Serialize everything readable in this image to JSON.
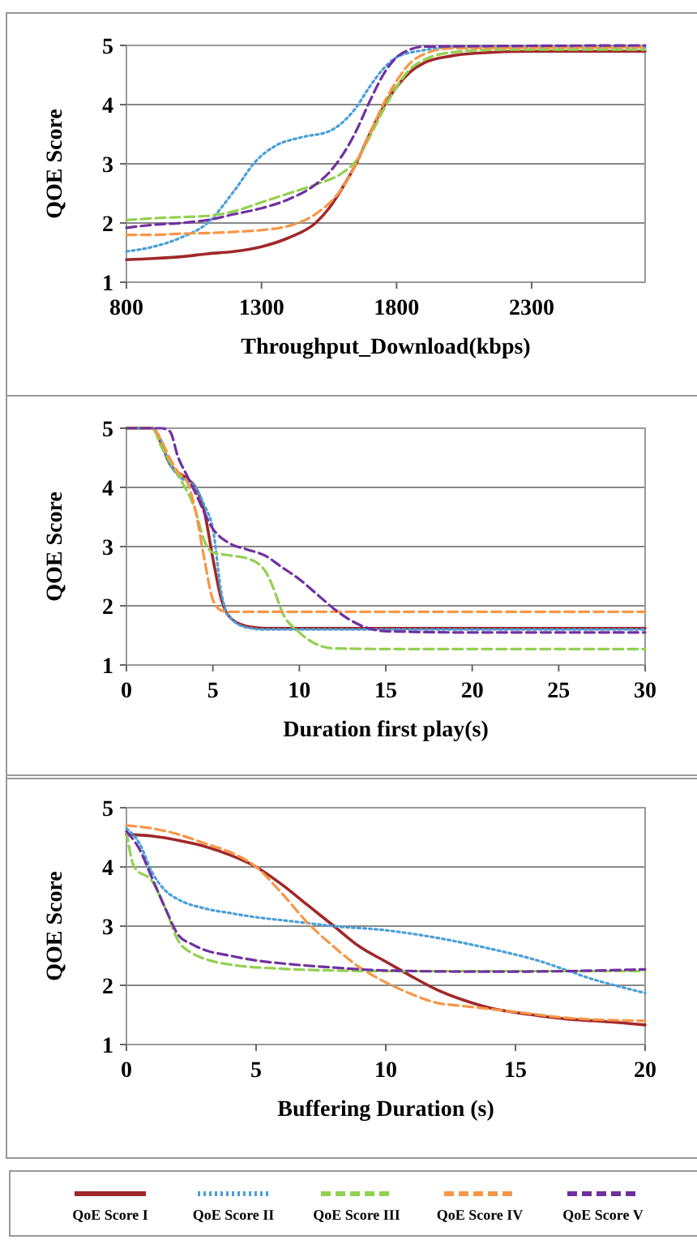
{
  "chart_data": [
    {
      "type": "line",
      "ylabel": "QOE Score",
      "xlabel": "Throughput_Download(kbps)",
      "xlim": [
        800,
        2720
      ],
      "xticks": [
        800,
        1300,
        1800,
        2300
      ],
      "ylim": [
        1,
        5
      ],
      "yticks": [
        1,
        2,
        3,
        4,
        5
      ],
      "grid": "y",
      "legend": false,
      "series": [
        {
          "color": "#a0282a",
          "line_style": "solid",
          "x": [
            800,
            900,
            1000,
            1100,
            1200,
            1300,
            1400,
            1500,
            1550,
            1600,
            1650,
            1700,
            1750,
            1800,
            1850,
            1900,
            2000,
            2100,
            2300,
            2720
          ],
          "values": [
            1.38,
            1.4,
            1.43,
            1.48,
            1.52,
            1.6,
            1.75,
            2.0,
            2.25,
            2.6,
            3.0,
            3.5,
            3.95,
            4.3,
            4.55,
            4.7,
            4.82,
            4.87,
            4.9,
            4.9
          ]
        },
        {
          "color": "#4a9fd8",
          "line_style": "dotted",
          "x": [
            800,
            900,
            1000,
            1100,
            1200,
            1280,
            1350,
            1450,
            1550,
            1600,
            1650,
            1700,
            1750,
            1800,
            1900,
            2000,
            2720
          ],
          "values": [
            1.52,
            1.6,
            1.75,
            2.0,
            2.55,
            3.05,
            3.3,
            3.45,
            3.55,
            3.7,
            3.95,
            4.3,
            4.6,
            4.8,
            4.92,
            4.97,
            4.97
          ]
        },
        {
          "color": "#92d050",
          "line_style": "dashed",
          "x": [
            800,
            900,
            1000,
            1100,
            1200,
            1300,
            1400,
            1500,
            1600,
            1650,
            1700,
            1750,
            1800,
            1850,
            1900,
            2000,
            2200,
            2720
          ],
          "values": [
            2.05,
            2.08,
            2.1,
            2.12,
            2.2,
            2.35,
            2.5,
            2.65,
            2.85,
            3.05,
            3.45,
            3.9,
            4.3,
            4.6,
            4.75,
            4.88,
            4.93,
            4.93
          ]
        },
        {
          "color": "#f79646",
          "line_style": "dashed",
          "x": [
            800,
            900,
            1000,
            1100,
            1200,
            1300,
            1400,
            1500,
            1600,
            1650,
            1700,
            1750,
            1800,
            1850,
            1900,
            2000,
            2720
          ],
          "values": [
            1.8,
            1.8,
            1.82,
            1.83,
            1.85,
            1.88,
            1.95,
            2.15,
            2.6,
            3.0,
            3.5,
            4.0,
            4.4,
            4.7,
            4.85,
            4.95,
            4.97
          ]
        },
        {
          "color": "#7030a0",
          "line_style": "dashed",
          "x": [
            800,
            900,
            1000,
            1100,
            1200,
            1300,
            1400,
            1500,
            1550,
            1600,
            1650,
            1700,
            1750,
            1800,
            1850,
            1900,
            2720
          ],
          "values": [
            1.92,
            1.97,
            2.0,
            2.05,
            2.15,
            2.25,
            2.4,
            2.65,
            2.85,
            3.15,
            3.55,
            4.05,
            4.5,
            4.8,
            4.93,
            4.98,
            5.0
          ]
        }
      ]
    },
    {
      "type": "line",
      "ylabel": "QOE Score",
      "xlabel": "Duration first play(s)",
      "xlim": [
        0,
        30
      ],
      "xticks": [
        0,
        5,
        10,
        15,
        20,
        25,
        30
      ],
      "ylim": [
        1,
        5
      ],
      "yticks": [
        1,
        2,
        3,
        4,
        5
      ],
      "grid": "y",
      "legend": false,
      "series": [
        {
          "color": "#a0282a",
          "line_style": "solid",
          "x": [
            0,
            1.5,
            2,
            2.5,
            3,
            3.5,
            4,
            4.5,
            5,
            5.5,
            6,
            7,
            8,
            10,
            30
          ],
          "values": [
            5,
            5,
            4.75,
            4.4,
            4.25,
            4.15,
            4.0,
            3.6,
            2.8,
            2.1,
            1.8,
            1.65,
            1.62,
            1.62,
            1.62
          ]
        },
        {
          "color": "#4a9fd8",
          "line_style": "dotted",
          "x": [
            0,
            1.5,
            2,
            2.5,
            3,
            4,
            4.5,
            5,
            5.5,
            6,
            7,
            8,
            30
          ],
          "values": [
            5,
            5,
            4.8,
            4.4,
            4.2,
            4.0,
            3.7,
            3.3,
            2.2,
            1.8,
            1.63,
            1.6,
            1.6
          ]
        },
        {
          "color": "#92d050",
          "line_style": "dashed",
          "x": [
            0,
            1.5,
            2,
            3,
            4,
            4.5,
            5,
            6,
            7,
            8,
            8.5,
            9,
            10,
            11,
            12,
            15,
            30
          ],
          "values": [
            5,
            5,
            4.7,
            4.2,
            3.6,
            3.1,
            2.9,
            2.85,
            2.8,
            2.6,
            2.3,
            1.9,
            1.55,
            1.35,
            1.28,
            1.27,
            1.27
          ]
        },
        {
          "color": "#f79646",
          "line_style": "dashed",
          "x": [
            0,
            1.5,
            2,
            2.5,
            3,
            3.5,
            4,
            4.5,
            5,
            5.5,
            6,
            30
          ],
          "values": [
            5,
            5,
            4.8,
            4.5,
            4.25,
            4.1,
            3.6,
            2.8,
            2.1,
            1.92,
            1.9,
            1.9
          ]
        },
        {
          "color": "#7030a0",
          "line_style": "dashed",
          "x": [
            0,
            2,
            2.5,
            3,
            3.5,
            4,
            5,
            6,
            7,
            8,
            9,
            10,
            11,
            12,
            13,
            14,
            15,
            20,
            30
          ],
          "values": [
            5,
            5,
            4.95,
            4.5,
            4.2,
            3.9,
            3.3,
            3.05,
            2.95,
            2.85,
            2.65,
            2.45,
            2.2,
            1.95,
            1.75,
            1.62,
            1.57,
            1.55,
            1.55
          ]
        }
      ]
    },
    {
      "type": "line",
      "ylabel": "QOE Score",
      "xlabel": "Buffering Duration (s)",
      "xlim": [
        0,
        20
      ],
      "xticks": [
        0,
        5,
        10,
        15,
        20
      ],
      "ylim": [
        1,
        5
      ],
      "yticks": [
        1,
        2,
        3,
        4,
        5
      ],
      "grid": "y",
      "legend": "bottom",
      "series": [
        {
          "name": "QoE Score I",
          "color": "#a0282a",
          "line_style": "solid",
          "x": [
            0,
            1,
            2,
            3,
            4,
            5,
            6,
            7,
            8,
            9,
            10,
            11,
            12,
            13,
            14,
            15,
            16,
            17,
            18,
            19,
            20
          ],
          "values": [
            4.55,
            4.52,
            4.45,
            4.35,
            4.2,
            4.0,
            3.7,
            3.35,
            3.0,
            2.65,
            2.4,
            2.15,
            1.92,
            1.75,
            1.62,
            1.54,
            1.48,
            1.43,
            1.4,
            1.37,
            1.33
          ]
        },
        {
          "name": "QoE Score II",
          "color": "#4a9fd8",
          "line_style": "dotted",
          "x": [
            0,
            0.5,
            1,
            1.5,
            2,
            3,
            4,
            5,
            6,
            7,
            8,
            10,
            12,
            14,
            16,
            17,
            18,
            19,
            20
          ],
          "values": [
            4.65,
            4.4,
            3.9,
            3.6,
            3.45,
            3.3,
            3.22,
            3.15,
            3.1,
            3.05,
            3.0,
            2.93,
            2.8,
            2.62,
            2.4,
            2.25,
            2.1,
            1.98,
            1.87
          ]
        },
        {
          "name": "QoE Score III",
          "color": "#92d050",
          "line_style": "dashed",
          "x": [
            0,
            0.3,
            1,
            1.5,
            2,
            2.5,
            3,
            4,
            6,
            8,
            10,
            20
          ],
          "values": [
            4.6,
            4.0,
            3.75,
            3.3,
            2.75,
            2.55,
            2.45,
            2.35,
            2.28,
            2.25,
            2.24,
            2.24
          ]
        },
        {
          "name": "QoE Score IV",
          "color": "#f79646",
          "line_style": "dashed",
          "x": [
            0,
            1,
            2,
            3,
            4,
            5,
            6,
            7,
            8,
            9,
            10,
            11,
            12,
            13,
            14,
            15,
            17,
            20
          ],
          "values": [
            4.7,
            4.65,
            4.55,
            4.4,
            4.25,
            4.0,
            3.55,
            3.05,
            2.65,
            2.3,
            2.05,
            1.85,
            1.7,
            1.65,
            1.6,
            1.55,
            1.45,
            1.4
          ]
        },
        {
          "name": "QoE Score V",
          "color": "#7030a0",
          "line_style": "dashed",
          "x": [
            0,
            0.5,
            1,
            1.5,
            2,
            2.5,
            3,
            4,
            5,
            6,
            8,
            10,
            14,
            17,
            20
          ],
          "values": [
            4.6,
            4.3,
            3.8,
            3.3,
            2.85,
            2.7,
            2.6,
            2.5,
            2.42,
            2.37,
            2.3,
            2.25,
            2.23,
            2.24,
            2.27
          ]
        }
      ]
    }
  ]
}
